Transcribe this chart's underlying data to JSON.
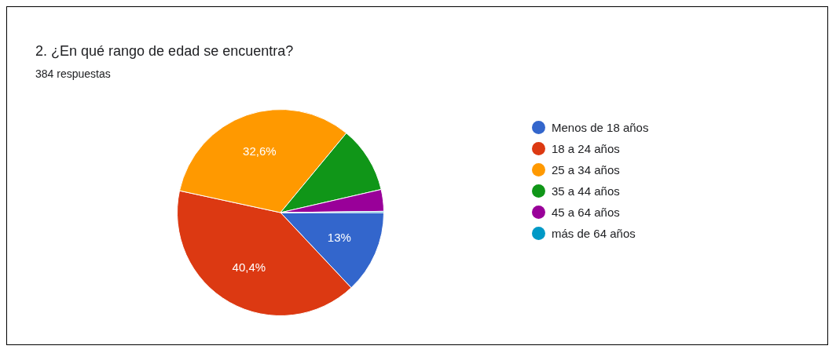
{
  "chart_data": {
    "type": "pie",
    "title": "2.  ¿En qué rango de edad se encuentra?",
    "subtitle": "384 respuestas",
    "categories": [
      "Menos de 18 años",
      "18 a 24 años",
      "25 a 34 años",
      "35 a 44 años",
      "45 a 64 años",
      "más de 64 años"
    ],
    "values": [
      13,
      40.4,
      32.6,
      10.4,
      3.4,
      0.2
    ],
    "colors": [
      "#3366cc",
      "#dc3912",
      "#ff9900",
      "#109618",
      "#990099",
      "#0099c6"
    ],
    "value_labels": [
      "13%",
      "40,4%",
      "32,6%",
      null,
      null,
      null
    ],
    "legend": "right"
  }
}
